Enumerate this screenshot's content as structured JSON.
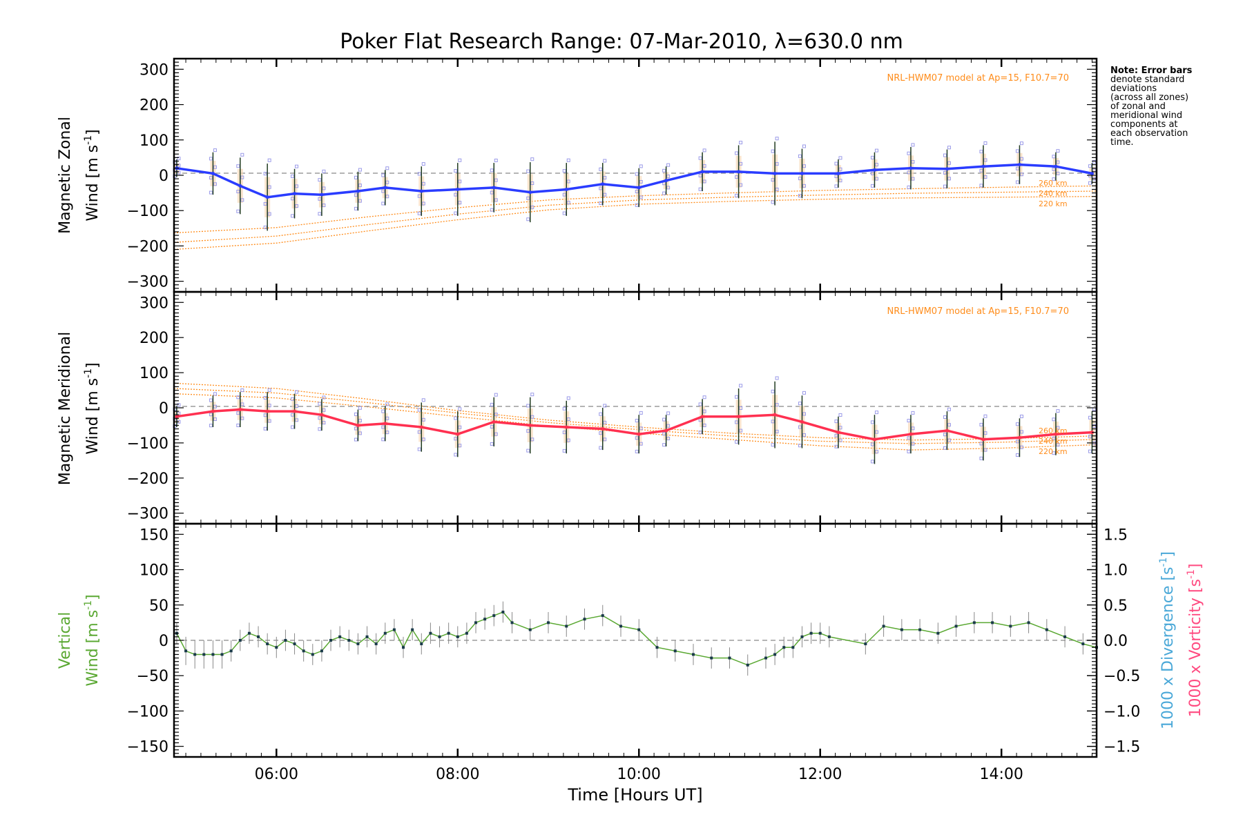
{
  "title": "Poker Flat Research Range: 07-Mar-2010, λ=630.0 nm",
  "note": [
    "Note: Error bars",
    "denote standard",
    "deviations",
    "(across all zones)",
    "of zonal and",
    "meridional wind",
    "components at",
    "each observation",
    "time."
  ],
  "x_axis": {
    "label": "Time [Hours UT]",
    "range": [
      4.87,
      15.05
    ],
    "ticks": [
      6,
      8,
      10,
      12,
      14
    ],
    "tick_labels": [
      "06:00",
      "08:00",
      "10:00",
      "12:00",
      "14:00"
    ]
  },
  "colors": {
    "zonal": "#2a3cff",
    "meridional": "#ff3050",
    "vertical": "#5aa832",
    "divergence": "#4aa8d8",
    "vorticity": "#ff4a80",
    "model": "#ff8c1a",
    "scatter": "#9a9ae8",
    "errorbar": "#1f3a1f",
    "zero": "#888888"
  },
  "model_label": "NRL-HWM07 model at Ap=15, F10.7=70",
  "chart_data": [
    {
      "type": "line",
      "panel": "zonal",
      "ylabel": [
        "Magnetic Zonal",
        "Wind [m s",
        "-1",
        "]"
      ],
      "ylim": [
        -330,
        330
      ],
      "yticks": [
        -300,
        -200,
        -100,
        0,
        100,
        200,
        300
      ],
      "model_label": "NRL-HWM07 model at Ap=15, F10.7=70",
      "model_curves": [
        {
          "name": "260 km",
          "x": [
            4.87,
            6,
            7,
            8,
            9,
            10,
            11,
            12,
            13,
            14,
            15.05
          ],
          "y": [
            -163,
            -148,
            -118,
            -92,
            -70,
            -58,
            -50,
            -43,
            -38,
            -34,
            -30
          ]
        },
        {
          "name": "240 km",
          "x": [
            4.87,
            6,
            7,
            8,
            9,
            10,
            11,
            12,
            13,
            14,
            15.05
          ],
          "y": [
            -190,
            -172,
            -140,
            -110,
            -85,
            -70,
            -62,
            -56,
            -51,
            -48,
            -45
          ]
        },
        {
          "name": "220 km",
          "x": [
            4.87,
            6,
            7,
            8,
            9,
            10,
            11,
            12,
            13,
            14,
            15.05
          ],
          "y": [
            -210,
            -192,
            -158,
            -126,
            -98,
            -82,
            -74,
            -68,
            -64,
            -62,
            -60
          ]
        }
      ],
      "series": [
        {
          "name": "zonal wind",
          "x": [
            4.9,
            5.3,
            5.6,
            5.9,
            6.2,
            6.5,
            6.9,
            7.2,
            7.6,
            8.0,
            8.4,
            8.8,
            9.2,
            9.6,
            10.0,
            10.3,
            10.7,
            11.1,
            11.5,
            11.8,
            12.2,
            12.6,
            13.0,
            13.4,
            13.8,
            14.2,
            14.6,
            15.0
          ],
          "y": [
            20,
            5,
            -30,
            -62,
            -52,
            -55,
            -45,
            -35,
            -45,
            -40,
            -35,
            -48,
            -40,
            -25,
            -35,
            -15,
            10,
            10,
            5,
            5,
            5,
            15,
            20,
            18,
            25,
            30,
            25,
            5
          ],
          "err": [
            25,
            60,
            80,
            95,
            70,
            60,
            55,
            50,
            70,
            75,
            70,
            85,
            75,
            60,
            55,
            40,
            55,
            75,
            90,
            70,
            40,
            50,
            60,
            55,
            60,
            55,
            40,
            30
          ]
        }
      ]
    },
    {
      "type": "line",
      "panel": "meridional",
      "ylabel": [
        "Magnetic Meridional",
        "Wind [m s",
        "-1",
        "]"
      ],
      "ylim": [
        -330,
        330
      ],
      "yticks": [
        -300,
        -200,
        -100,
        0,
        100,
        200,
        300
      ],
      "model_label": "NRL-HWM07 model at Ap=15, F10.7=70",
      "model_curves": [
        {
          "name": "260 km",
          "x": [
            4.87,
            6,
            7,
            8,
            9,
            10,
            11,
            12,
            13,
            14,
            15.05
          ],
          "y": [
            70,
            55,
            25,
            -8,
            -35,
            -55,
            -72,
            -85,
            -92,
            -88,
            -80
          ]
        },
        {
          "name": "240 km",
          "x": [
            4.87,
            6,
            7,
            8,
            9,
            10,
            11,
            12,
            13,
            14,
            15.05
          ],
          "y": [
            55,
            42,
            15,
            -15,
            -42,
            -62,
            -80,
            -95,
            -102,
            -98,
            -90
          ]
        },
        {
          "name": "220 km",
          "x": [
            4.87,
            6,
            7,
            8,
            9,
            10,
            11,
            12,
            13,
            14,
            15.05
          ],
          "y": [
            40,
            28,
            3,
            -25,
            -52,
            -72,
            -90,
            -108,
            -120,
            -115,
            -105
          ]
        }
      ],
      "series": [
        {
          "name": "meridional wind",
          "x": [
            4.9,
            5.3,
            5.6,
            5.9,
            6.2,
            6.5,
            6.9,
            7.2,
            7.6,
            8.0,
            8.4,
            8.8,
            9.2,
            9.6,
            10.0,
            10.3,
            10.7,
            11.1,
            11.5,
            11.8,
            12.2,
            12.6,
            13.0,
            13.4,
            13.8,
            14.2,
            14.6,
            15.0
          ],
          "y": [
            -25,
            -10,
            -5,
            -10,
            -10,
            -20,
            -50,
            -45,
            -55,
            -75,
            -40,
            -50,
            -55,
            -60,
            -75,
            -65,
            -25,
            -25,
            -20,
            -40,
            -70,
            -90,
            -75,
            -65,
            -90,
            -85,
            -75,
            -70
          ],
          "err": [
            30,
            45,
            50,
            55,
            50,
            45,
            45,
            50,
            70,
            65,
            70,
            80,
            75,
            60,
            55,
            45,
            50,
            80,
            95,
            75,
            45,
            70,
            55,
            55,
            60,
            55,
            60,
            60
          ]
        }
      ]
    },
    {
      "type": "line",
      "panel": "vertical",
      "ylabel": [
        "Vertical",
        "Wind [m s",
        "-1",
        "]"
      ],
      "ylim": [
        -165,
        165
      ],
      "yticks": [
        -150,
        -100,
        -50,
        0,
        50,
        100,
        150
      ],
      "y2lim": [
        -1.65,
        1.65
      ],
      "y2ticks": [
        -1.5,
        -1.0,
        -0.5,
        0.0,
        0.5,
        1.0,
        1.5
      ],
      "y2tick_labels": [
        "−1.5",
        "−1.0",
        "−0.5",
        "0.0",
        "0.5",
        "1.0",
        "1.5"
      ],
      "y2labels": {
        "divergence": "1000 x Divergence [s",
        "vorticity": "1000 x Vorticity [s",
        "exponent": "-1",
        "close": "]"
      },
      "series": [
        {
          "name": "vertical wind",
          "x": [
            4.9,
            5.0,
            5.1,
            5.2,
            5.3,
            5.4,
            5.5,
            5.6,
            5.7,
            5.8,
            5.9,
            6.0,
            6.1,
            6.2,
            6.3,
            6.4,
            6.5,
            6.6,
            6.7,
            6.8,
            6.9,
            7.0,
            7.1,
            7.2,
            7.3,
            7.4,
            7.5,
            7.6,
            7.7,
            7.8,
            7.9,
            8.0,
            8.1,
            8.2,
            8.3,
            8.4,
            8.5,
            8.6,
            8.8,
            9.0,
            9.2,
            9.4,
            9.6,
            9.8,
            10.0,
            10.2,
            10.4,
            10.6,
            10.8,
            11.0,
            11.2,
            11.4,
            11.5,
            11.6,
            11.7,
            11.8,
            11.9,
            12.0,
            12.1,
            12.5,
            12.7,
            12.9,
            13.1,
            13.3,
            13.5,
            13.7,
            13.9,
            14.1,
            14.3,
            14.5,
            14.7,
            14.9,
            15.05
          ],
          "y": [
            10,
            -15,
            -20,
            -20,
            -20,
            -20,
            -15,
            0,
            10,
            5,
            -5,
            -10,
            0,
            -5,
            -15,
            -20,
            -15,
            0,
            5,
            0,
            -5,
            5,
            -5,
            10,
            15,
            -10,
            15,
            -5,
            10,
            5,
            10,
            5,
            10,
            25,
            30,
            35,
            40,
            25,
            15,
            25,
            20,
            30,
            35,
            20,
            15,
            -10,
            -15,
            -20,
            -25,
            -25,
            -35,
            -25,
            -20,
            -10,
            -10,
            5,
            10,
            10,
            5,
            -5,
            20,
            15,
            15,
            10,
            20,
            25,
            25,
            20,
            25,
            15,
            5,
            -5,
            -10
          ],
          "err": [
            15,
            20,
            20,
            20,
            20,
            20,
            15,
            15,
            15,
            15,
            15,
            15,
            15,
            15,
            15,
            15,
            15,
            15,
            15,
            15,
            15,
            15,
            15,
            15,
            15,
            15,
            15,
            15,
            15,
            15,
            15,
            15,
            15,
            15,
            15,
            15,
            15,
            15,
            15,
            15,
            15,
            15,
            15,
            15,
            15,
            15,
            15,
            15,
            15,
            15,
            15,
            15,
            15,
            15,
            15,
            15,
            15,
            15,
            15,
            15,
            15,
            15,
            15,
            15,
            15,
            15,
            15,
            15,
            15,
            15,
            15,
            15,
            15
          ]
        }
      ]
    }
  ]
}
